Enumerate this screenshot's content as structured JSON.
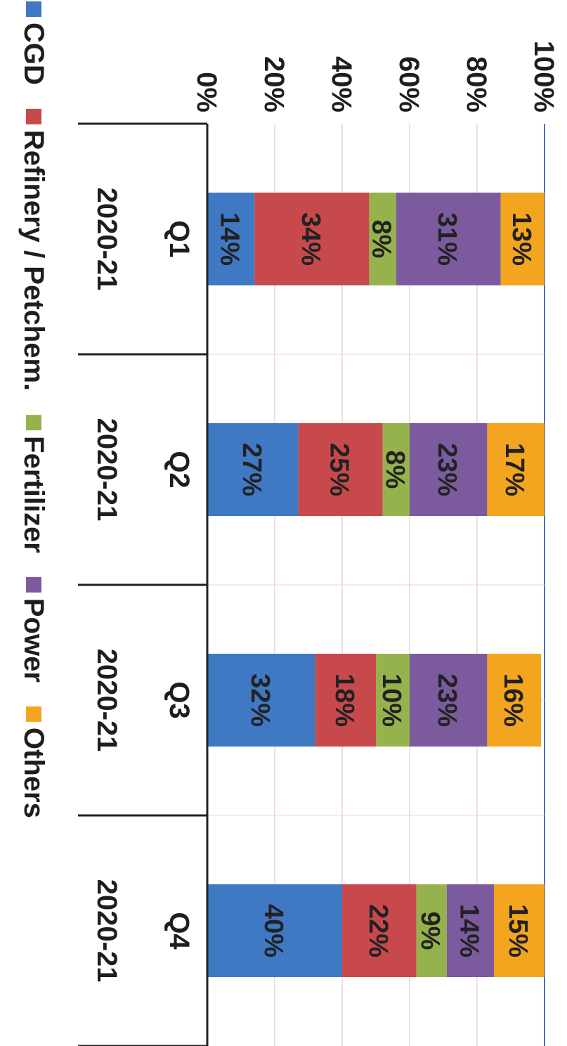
{
  "chart_data": {
    "type": "bar",
    "stacked": true,
    "orientation": "vertical, figure rotated 90 degrees clockwise",
    "categories": [
      [
        "Q1",
        "2020-21"
      ],
      [
        "Q2",
        "2020-21"
      ],
      [
        "Q3",
        "2020-21"
      ],
      [
        "Q4",
        "2020-21"
      ]
    ],
    "series": [
      {
        "name": "CGD",
        "color": "#3f79c4",
        "values": [
          14,
          27,
          32,
          40
        ]
      },
      {
        "name": "Refinery / Petchem.",
        "color": "#c8494c",
        "values": [
          34,
          25,
          18,
          22
        ]
      },
      {
        "name": "Fertilizer",
        "color": "#96b24c",
        "values": [
          8,
          8,
          10,
          9
        ]
      },
      {
        "name": "Power",
        "color": "#7b5a9e",
        "values": [
          31,
          23,
          23,
          14
        ]
      },
      {
        "name": "Others",
        "color": "#f3a51f",
        "values": [
          13,
          17,
          16,
          15
        ]
      }
    ],
    "data_labels": [
      [
        "14%",
        "27%",
        "32%",
        "40%"
      ],
      [
        "34%",
        "25%",
        "18%",
        "22%"
      ],
      [
        "8%",
        "8%",
        "10%",
        "9%"
      ],
      [
        "31%",
        "23%",
        "23%",
        "14%"
      ],
      [
        "13%",
        "17%",
        "16%",
        "15%"
      ]
    ],
    "y_ticks": [
      "0%",
      "20%",
      "40%",
      "60%",
      "80%",
      "100%"
    ],
    "ylim": [
      0,
      100
    ],
    "grid": true,
    "legend_position": "bottom",
    "title": "",
    "xlabel": "",
    "ylabel": ""
  }
}
